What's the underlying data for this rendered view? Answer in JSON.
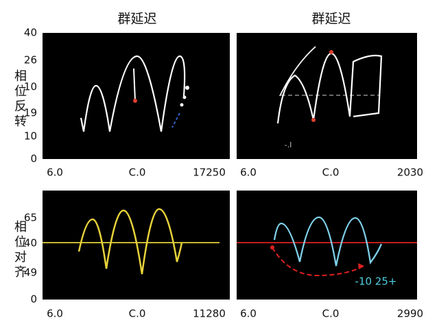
{
  "panels": [
    {
      "title": "群延迟",
      "side_label": "相位反转",
      "y_labels": [
        "40",
        "26",
        "10",
        "19",
        "10",
        "0"
      ],
      "x_labels": [
        "6.0",
        "C.0",
        "17250"
      ]
    },
    {
      "title": "群延迟",
      "x_labels": [
        "6.0",
        "C.0",
        "2030"
      ],
      "annotation": "-.l"
    },
    {
      "side_label": "相位对齐",
      "y_labels": [
        "65",
        "40",
        "49",
        "0"
      ],
      "x_labels": [
        "6.0",
        "C.0",
        "11280"
      ]
    },
    {
      "x_labels": [
        "6.0",
        "C.0",
        "2990"
      ],
      "annotation": "-10 25+"
    }
  ]
}
